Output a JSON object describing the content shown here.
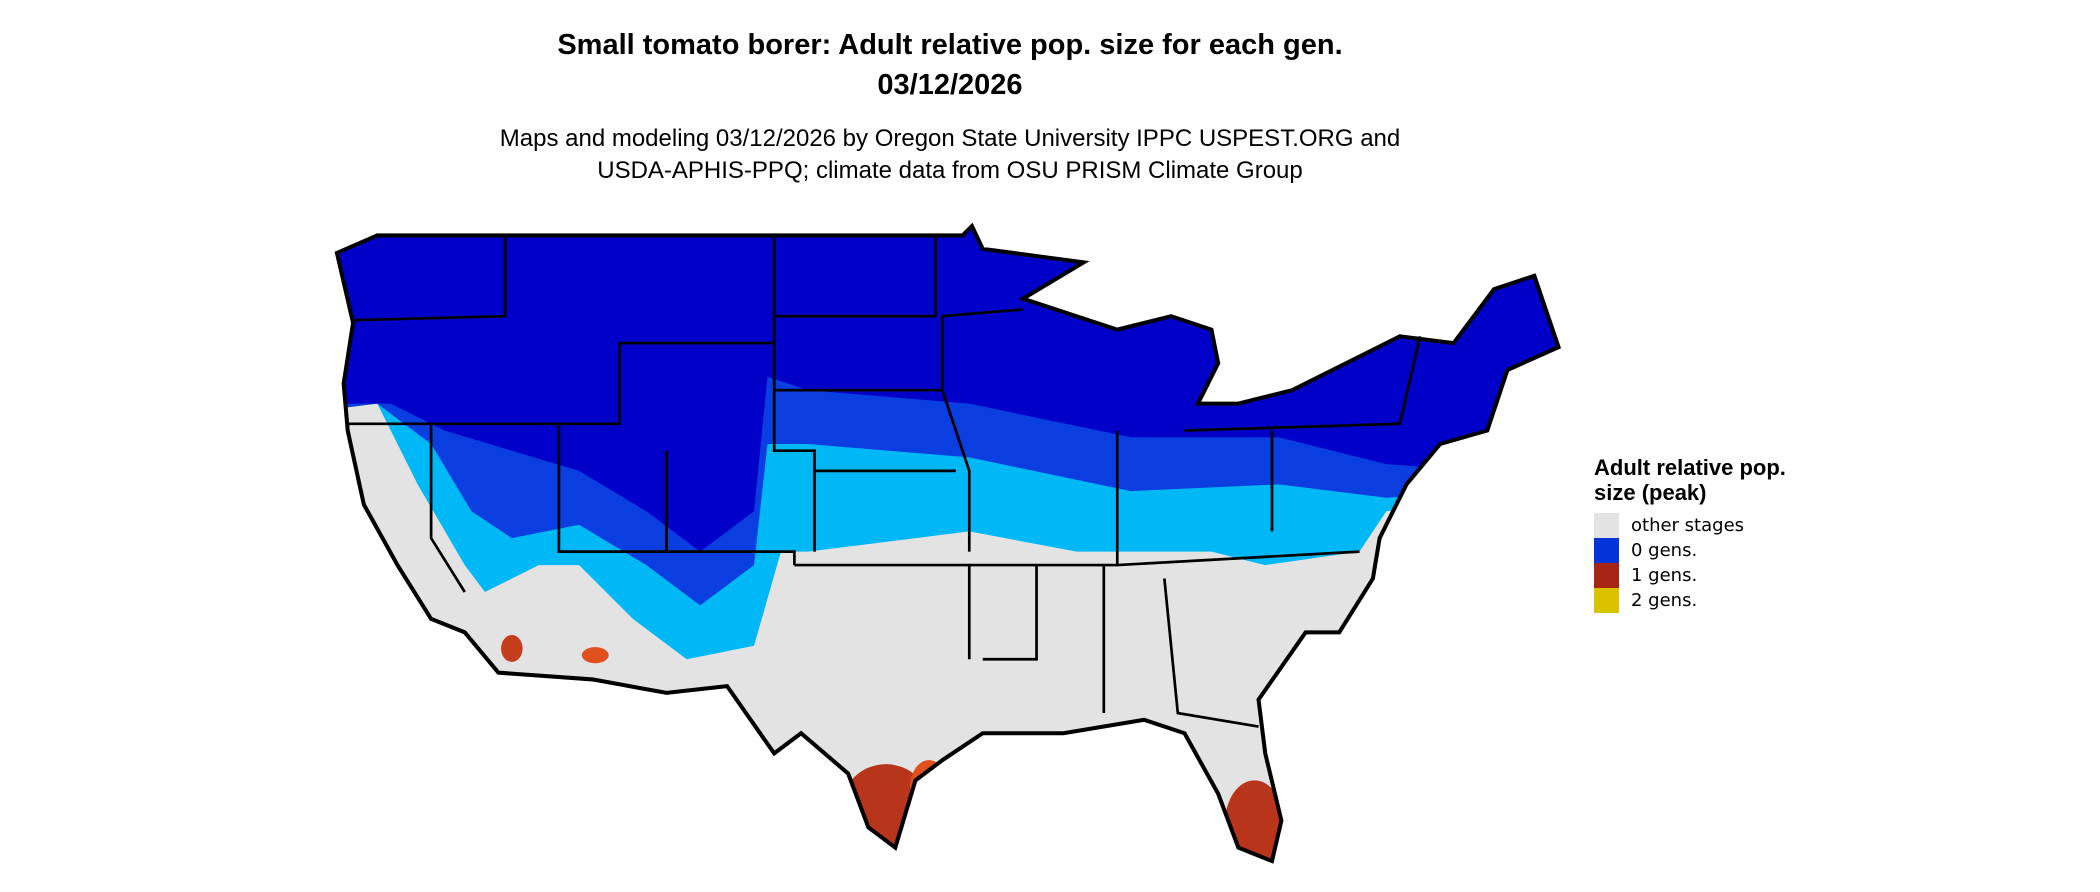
{
  "title": {
    "line1": "Small tomato borer: Adult relative pop. size for each gen.",
    "line2": "03/12/2026"
  },
  "subtitle": {
    "line1": "Maps and modeling 03/12/2026 by Oregon State University IPPC USPEST.ORG and",
    "line2": "USDA-APHIS-PPQ; climate data from OSU PRISM Climate Group"
  },
  "legend": {
    "title": "Adult relative pop. size (peak)",
    "items": [
      {
        "label": "other stages",
        "color": "#e3e3e3"
      },
      {
        "label": "0 gens.",
        "color": "#0433d9"
      },
      {
        "label": "1 gens.",
        "color": "#a62515"
      },
      {
        "label": "2 gens.",
        "color": "#d9c200"
      }
    ]
  },
  "map": {
    "region": "Contiguous United States",
    "colors": {
      "dark_blue": "#0000c8",
      "mid_blue": "#0a3ee0",
      "light_blue": "#00b8f5",
      "gray": "#e3e3e3",
      "red": "#b8341a",
      "orange": "#e0501c",
      "border": "#000000"
    }
  }
}
